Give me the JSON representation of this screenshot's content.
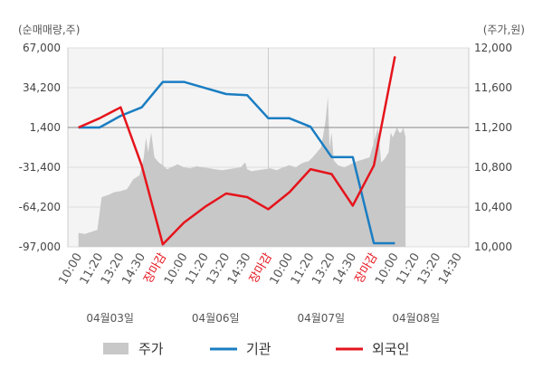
{
  "chart_data": {
    "type": "line",
    "left_axis_unit": "(순매매량,주)",
    "right_axis_unit": "(주가,원)",
    "left_ticks": [
      "67,000",
      "34,200",
      "1,400",
      "-31,400",
      "-64,200",
      "-97,000"
    ],
    "right_ticks": [
      "12,000",
      "11,600",
      "11,200",
      "10,800",
      "10,400",
      "10,000"
    ],
    "left_range": [
      -97000,
      67000
    ],
    "right_range": [
      10000,
      12000
    ],
    "x_ticks": [
      "10:00",
      "11:20",
      "13:20",
      "14:30",
      "장마감",
      "10:00",
      "11:20",
      "13:20",
      "14:30",
      "장마감",
      "10:00",
      "11:20",
      "13:20",
      "14:30",
      "장마감",
      "10:00",
      "11:20",
      "13:20",
      "14:30"
    ],
    "dates": [
      "04월03일",
      "04월06일",
      "04월07일",
      "04월08일"
    ],
    "legend": [
      "주가",
      "기관",
      "외국인"
    ],
    "colors": {
      "price": "#c8c8c8",
      "institution": "#1a7dc2",
      "foreign": "#e5141c",
      "close_label": "#e5141c"
    },
    "series_institution": [
      [
        0,
        1400
      ],
      [
        1,
        1400
      ],
      [
        2,
        11000
      ],
      [
        3,
        18000
      ],
      [
        4,
        39000
      ],
      [
        5,
        39000
      ],
      [
        6,
        34000
      ],
      [
        7,
        29000
      ],
      [
        8,
        28000
      ],
      [
        9,
        9000
      ],
      [
        10,
        9000
      ],
      [
        11,
        2000
      ],
      [
        12,
        -23000
      ],
      [
        13,
        -23000
      ],
      [
        14,
        -94000
      ],
      [
        15,
        -94000
      ]
    ],
    "series_foreign": [
      [
        0,
        1400
      ],
      [
        1,
        9000
      ],
      [
        2,
        18000
      ],
      [
        3,
        -30000
      ],
      [
        4,
        -95000
      ],
      [
        5,
        -77000
      ],
      [
        6,
        -64000
      ],
      [
        7,
        -53000
      ],
      [
        8,
        -56000
      ],
      [
        9,
        -66000
      ],
      [
        10,
        -52000
      ],
      [
        11,
        -33000
      ],
      [
        12,
        -37000
      ],
      [
        13,
        -63000
      ],
      [
        14,
        -30000
      ],
      [
        15,
        60000
      ]
    ],
    "series_price": [
      [
        0.0,
        10140
      ],
      [
        0.3,
        10130
      ],
      [
        0.6,
        10150
      ],
      [
        0.9,
        10170
      ],
      [
        1.1,
        10500
      ],
      [
        1.4,
        10520
      ],
      [
        1.7,
        10550
      ],
      [
        2.0,
        10560
      ],
      [
        2.3,
        10580
      ],
      [
        2.6,
        10680
      ],
      [
        2.9,
        10720
      ],
      [
        3.1,
        10900
      ],
      [
        3.2,
        11100
      ],
      [
        3.3,
        10950
      ],
      [
        3.45,
        11150
      ],
      [
        3.6,
        10900
      ],
      [
        3.8,
        10850
      ],
      [
        4.0,
        10820
      ],
      [
        4.2,
        10780
      ],
      [
        4.4,
        10800
      ],
      [
        4.7,
        10830
      ],
      [
        5.0,
        10800
      ],
      [
        5.3,
        10790
      ],
      [
        5.6,
        10810
      ],
      [
        5.9,
        10800
      ],
      [
        6.2,
        10790
      ],
      [
        6.5,
        10780
      ],
      [
        6.8,
        10770
      ],
      [
        7.1,
        10780
      ],
      [
        7.4,
        10790
      ],
      [
        7.7,
        10800
      ],
      [
        7.9,
        10850
      ],
      [
        8.0,
        10780
      ],
      [
        8.2,
        10760
      ],
      [
        8.5,
        10770
      ],
      [
        8.8,
        10780
      ],
      [
        9.1,
        10790
      ],
      [
        9.4,
        10770
      ],
      [
        9.7,
        10800
      ],
      [
        10.0,
        10820
      ],
      [
        10.3,
        10800
      ],
      [
        10.5,
        10830
      ],
      [
        10.7,
        10850
      ],
      [
        10.9,
        10860
      ],
      [
        11.1,
        10900
      ],
      [
        11.3,
        10950
      ],
      [
        11.5,
        11000
      ],
      [
        11.7,
        11250
      ],
      [
        11.82,
        11510
      ],
      [
        11.9,
        11000
      ],
      [
        12.0,
        11150
      ],
      [
        12.1,
        10870
      ],
      [
        12.3,
        10820
      ],
      [
        12.6,
        10800
      ],
      [
        12.9,
        10830
      ],
      [
        13.2,
        10860
      ],
      [
        13.5,
        10880
      ],
      [
        13.8,
        10900
      ],
      [
        14.0,
        11050
      ],
      [
        14.2,
        11200
      ],
      [
        14.35,
        10850
      ],
      [
        14.5,
        10880
      ],
      [
        14.7,
        10950
      ],
      [
        14.8,
        11150
      ],
      [
        14.9,
        11100
      ],
      [
        15.0,
        11150
      ],
      [
        15.1,
        11200
      ],
      [
        15.2,
        11150
      ],
      [
        15.3,
        11150
      ],
      [
        15.4,
        11200
      ],
      [
        15.5,
        11100
      ]
    ]
  }
}
